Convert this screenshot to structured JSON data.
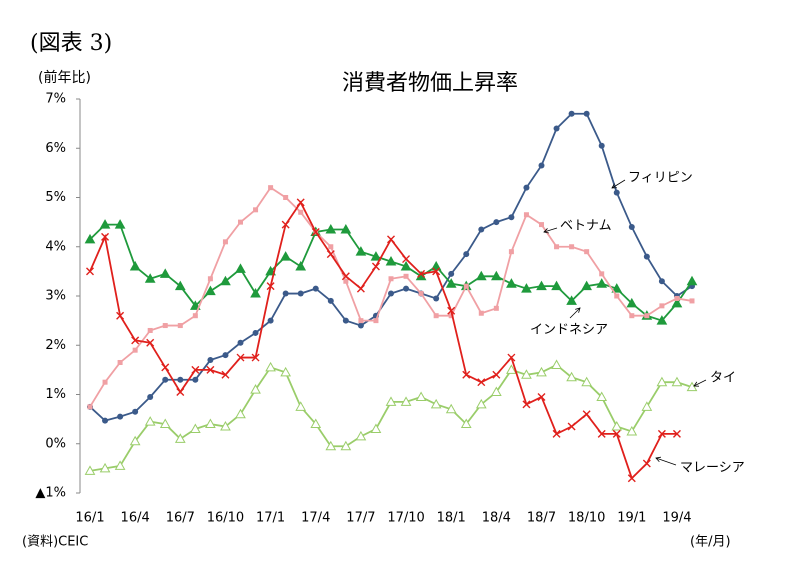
{
  "chart_data": {
    "type": "line",
    "figure_label": "(図表 3)",
    "title": "消費者物価上昇率",
    "y_label": "(前年比)",
    "x_label": "(年/月)",
    "source": "(資料)CEIC",
    "categories": [
      "16/1",
      null,
      null,
      "16/4",
      null,
      null,
      "16/7",
      null,
      null,
      "16/10",
      null,
      null,
      "17/1",
      null,
      null,
      "17/4",
      null,
      null,
      "17/7",
      null,
      null,
      "17/10",
      null,
      null,
      "18/1",
      null,
      null,
      "18/4",
      null,
      null,
      "18/7",
      null,
      null,
      "18/10",
      null,
      null,
      "19/1",
      null,
      null,
      "19/4",
      null
    ],
    "ylim": [
      -1,
      7
    ],
    "yticks": [
      {
        "value": -1,
        "label": "▲1%"
      },
      {
        "value": 0,
        "label": "0%"
      },
      {
        "value": 1,
        "label": "1%"
      },
      {
        "value": 2,
        "label": "2%"
      },
      {
        "value": 3,
        "label": "3%"
      },
      {
        "value": 4,
        "label": "4%"
      },
      {
        "value": 5,
        "label": "5%"
      },
      {
        "value": 6,
        "label": "6%"
      },
      {
        "value": 7,
        "label": "7%"
      }
    ],
    "grid": false,
    "series": [
      {
        "name": "フィリピン",
        "color": "#3b5a8a",
        "marker": "circle",
        "values": [
          0.75,
          0.47,
          0.55,
          0.65,
          0.95,
          1.3,
          1.3,
          1.3,
          1.7,
          1.8,
          2.05,
          2.25,
          2.5,
          3.05,
          3.05,
          3.15,
          2.9,
          2.5,
          2.4,
          2.6,
          3.05,
          3.15,
          3.05,
          2.95,
          3.45,
          3.85,
          4.35,
          4.5,
          4.6,
          5.2,
          5.65,
          6.4,
          6.7,
          6.7,
          6.05,
          5.1,
          4.4,
          3.8,
          3.3,
          3.0,
          3.2
        ]
      },
      {
        "name": "ベトナム",
        "color": "#1f9a3c",
        "marker": "triangle",
        "values": [
          4.15,
          4.45,
          4.45,
          3.6,
          3.35,
          3.45,
          3.2,
          2.8,
          3.1,
          3.3,
          3.55,
          3.05,
          3.5,
          3.8,
          3.6,
          4.3,
          4.35,
          4.35,
          3.9,
          3.8,
          3.7,
          3.6,
          3.4,
          3.6,
          3.25,
          3.2,
          3.4,
          3.4,
          3.25,
          3.15,
          3.2,
          3.2,
          2.9,
          3.2,
          3.25,
          3.15,
          2.85,
          2.6,
          2.5,
          2.85,
          3.3
        ]
      },
      {
        "name": "インドネシア",
        "color": "#f0a0a4",
        "marker": "square",
        "values": [
          0.75,
          1.25,
          1.65,
          1.9,
          2.3,
          2.4,
          2.4,
          2.6,
          3.35,
          4.1,
          4.5,
          4.75,
          5.2,
          5.0,
          4.7,
          4.3,
          4.0,
          3.3,
          2.5,
          2.5,
          3.35,
          3.4,
          3.05,
          2.6,
          2.6,
          3.2,
          2.65,
          2.75,
          3.9,
          4.65,
          4.45,
          4.0,
          4.0,
          3.9,
          3.45,
          3.0,
          2.6,
          2.6,
          2.8,
          2.95,
          2.9
        ]
      },
      {
        "name": "タイ",
        "color": "#9acd6a",
        "marker": "open-triangle",
        "values": [
          -0.55,
          -0.5,
          -0.45,
          0.05,
          0.45,
          0.4,
          0.1,
          0.3,
          0.4,
          0.35,
          0.6,
          1.1,
          1.55,
          1.45,
          0.75,
          0.4,
          -0.05,
          -0.05,
          0.15,
          0.3,
          0.85,
          0.85,
          0.95,
          0.8,
          0.7,
          0.4,
          0.8,
          1.05,
          1.5,
          1.4,
          1.45,
          1.6,
          1.35,
          1.25,
          0.95,
          0.35,
          0.25,
          0.75,
          1.25,
          1.25,
          1.15
        ]
      },
      {
        "name": "マレーシア",
        "color": "#e0201c",
        "marker": "x",
        "values": [
          3.5,
          4.2,
          2.6,
          2.1,
          2.05,
          1.55,
          1.05,
          1.5,
          1.5,
          1.4,
          1.75,
          1.75,
          3.2,
          4.45,
          4.9,
          4.3,
          3.85,
          3.4,
          3.15,
          3.6,
          4.15,
          3.75,
          3.45,
          3.5,
          2.7,
          1.4,
          1.25,
          1.4,
          1.75,
          0.8,
          0.95,
          0.2,
          0.35,
          0.6,
          0.2,
          0.2,
          -0.7,
          -0.4,
          0.2,
          0.2,
          null
        ]
      }
    ]
  }
}
